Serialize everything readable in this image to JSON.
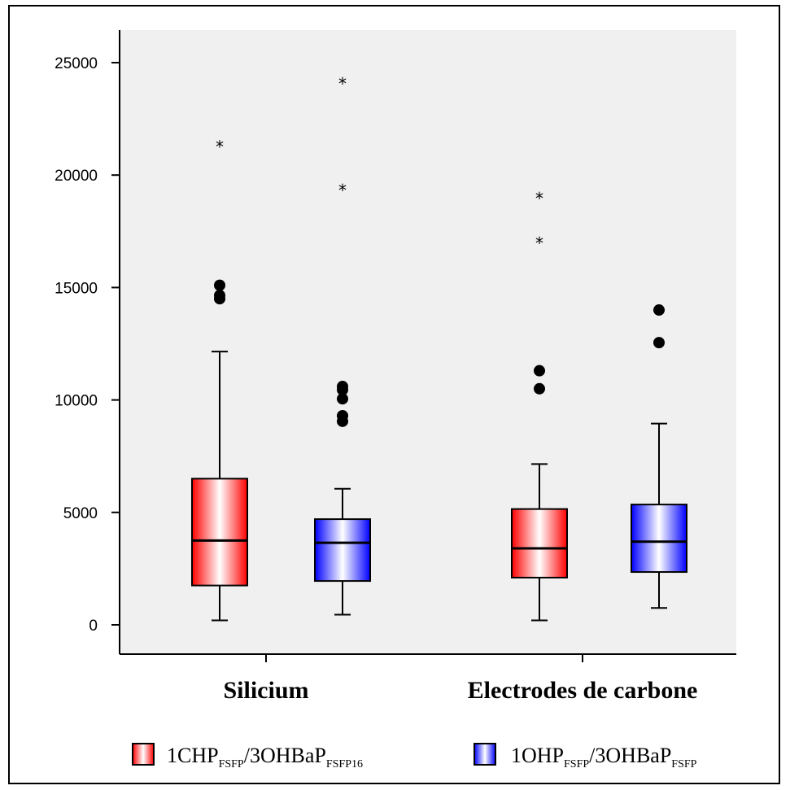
{
  "chart_data": {
    "type": "boxplot",
    "title": "",
    "xlabel": "",
    "ylabel": "",
    "ylim": [
      0,
      25000
    ],
    "yticks": [
      0,
      5000,
      10000,
      15000,
      20000,
      25000
    ],
    "grid": false,
    "legend_position": "bottom",
    "categories": [
      "Silicium",
      "Electrodes de carbone"
    ],
    "series": [
      {
        "name_main": "1CHP",
        "name_sub1": "FSFP",
        "name_mid": "/3OHBaP",
        "name_sub2": "FSFP16",
        "color": "#ff0000",
        "boxes": [
          {
            "whisker_low": 200,
            "q1": 1750,
            "median": 3750,
            "q3": 6500,
            "whisker_high": 12150,
            "outliers": [
              14500,
              14650,
              15100
            ],
            "extremes": [
              21300
            ]
          },
          {
            "whisker_low": 200,
            "q1": 2100,
            "median": 3400,
            "q3": 5150,
            "whisker_high": 7150,
            "outliers": [
              10500,
              11300
            ],
            "extremes": [
              17000,
              19000
            ]
          }
        ]
      },
      {
        "name_main": "1OHP",
        "name_sub1": "FSFP",
        "name_mid": "/3OHBaP",
        "name_sub2": "FSFP",
        "color": "#0000ff",
        "boxes": [
          {
            "whisker_low": 450,
            "q1": 1950,
            "median": 3650,
            "q3": 4700,
            "whisker_high": 6050,
            "outliers": [
              9050,
              9300,
              10050,
              10450,
              10600
            ],
            "extremes": [
              19350,
              24100
            ]
          },
          {
            "whisker_low": 750,
            "q1": 2350,
            "median": 3700,
            "q3": 5350,
            "whisker_high": 8950,
            "outliers": [
              12550,
              14000
            ],
            "extremes": []
          }
        ]
      }
    ]
  }
}
